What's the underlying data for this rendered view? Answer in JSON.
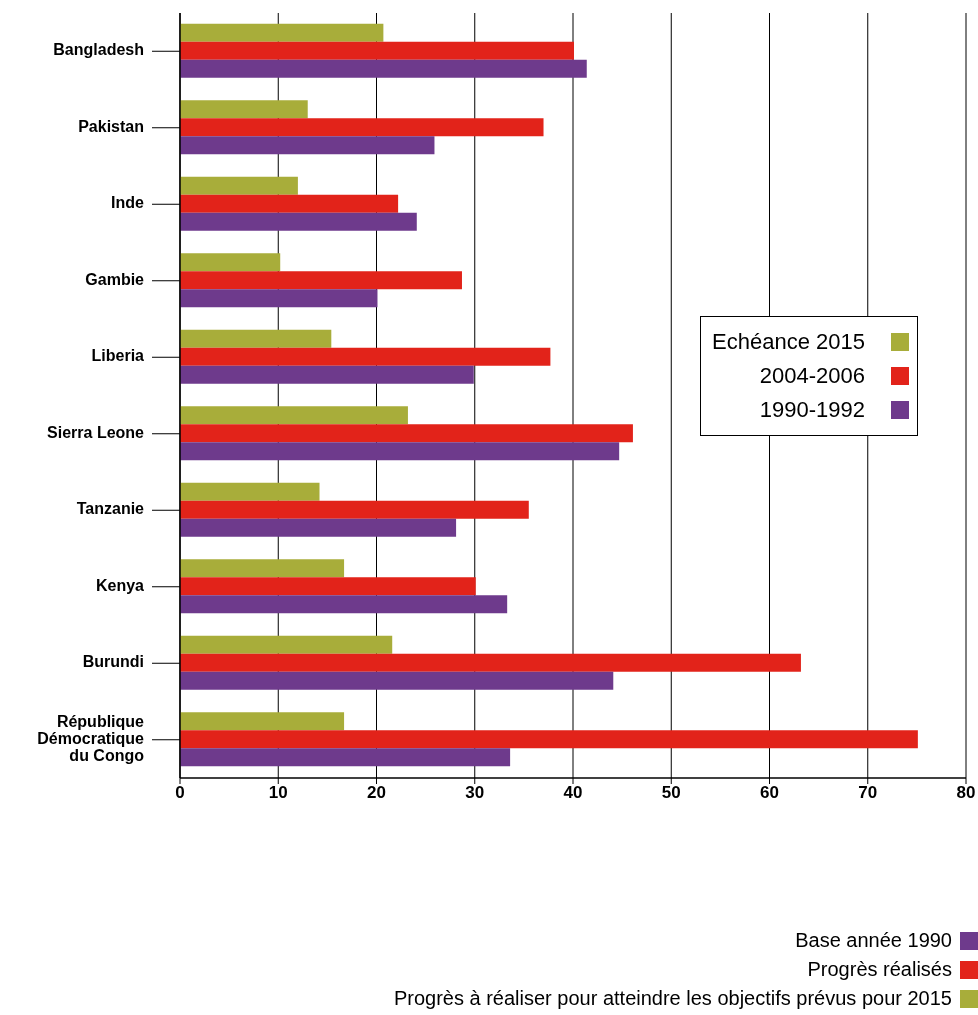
{
  "chart_data": {
    "type": "bar",
    "orientation": "horizontal",
    "categories": [
      "Bangladesh",
      "Pakistan",
      "Inde",
      "Gambie",
      "Liberia",
      "Sierra Leone",
      "Tanzanie",
      "Kenya",
      "Burundi",
      "République Démocratique du Congo"
    ],
    "series": [
      {
        "name": "Echéance 2015",
        "color": "#a8ad3a",
        "values": [
          20.7,
          13,
          12,
          10.2,
          15.4,
          23.2,
          14.2,
          16.7,
          21.6,
          16.7
        ]
      },
      {
        "name": "2004-2006",
        "color": "#e2231a",
        "values": [
          40.1,
          37,
          22.2,
          28.7,
          37.7,
          46.1,
          35.5,
          30.1,
          63.2,
          75.1
        ]
      },
      {
        "name": "1990-1992",
        "color": "#6e3a8c",
        "values": [
          41.4,
          25.9,
          24.1,
          20.1,
          29.9,
          44.7,
          28.1,
          33.3,
          44.1,
          33.6
        ]
      }
    ],
    "xlim": [
      0,
      80
    ],
    "xticks": [
      0,
      10,
      20,
      30,
      40,
      50,
      60,
      70,
      80
    ],
    "grid": "x",
    "legend": "right",
    "annotations": [
      "Base année 1990",
      "Progrès réalisés",
      "Progrès à réaliser pour atteindre les objectifs prévus pour 2015"
    ]
  }
}
